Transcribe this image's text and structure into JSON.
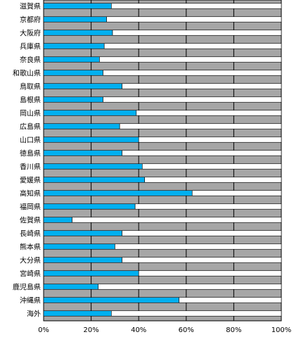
{
  "chart_data": {
    "type": "bar",
    "orientation": "horizontal",
    "stacked": true,
    "categories": [
      "滋賀県",
      "京都府",
      "大阪府",
      "兵庫県",
      "奈良県",
      "和歌山県",
      "鳥取県",
      "島根県",
      "岡山県",
      "広島県",
      "山口県",
      "徳島県",
      "香川県",
      "愛媛県",
      "高知県",
      "福岡県",
      "佐賀県",
      "長崎県",
      "熊本県",
      "大分県",
      "宮崎県",
      "鹿児島県",
      "沖縄県",
      "海外"
    ],
    "series": [
      {
        "values": [
          28.5,
          26.5,
          29,
          25.5,
          23.5,
          25,
          33,
          25,
          39,
          32,
          40,
          33,
          41.5,
          42.5,
          62.5,
          38.5,
          12,
          33,
          30,
          33,
          40,
          23,
          57,
          28.5
        ],
        "color": "#00B0F0"
      },
      {
        "values": [
          71.5,
          73.5,
          71,
          74.5,
          76.5,
          75,
          67,
          75,
          61,
          68,
          60,
          67,
          58.5,
          57.5,
          37.5,
          61.5,
          88,
          67,
          70,
          67,
          60,
          77,
          43,
          71.5
        ],
        "color": "#FFFFFF"
      }
    ],
    "xlim": [
      0,
      100
    ],
    "xticks": [
      "0%",
      "20%",
      "40%",
      "60%",
      "80%",
      "100%"
    ],
    "plot_background": "#A6A6A6",
    "grid": true
  }
}
